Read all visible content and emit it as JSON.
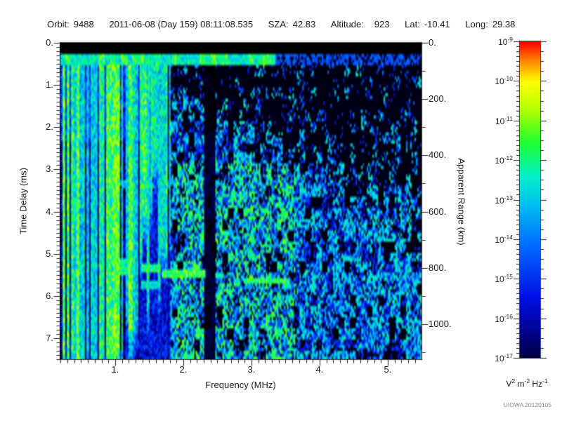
{
  "header": {
    "orbit_label": "Orbit:",
    "orbit_value": "9488",
    "datetime": "2011-06-08 (Day 159) 08:11:08.535",
    "sza_label": "SZA:",
    "sza_value": "42.83",
    "altitude_label": "Altitude:",
    "altitude_value": "923",
    "lat_label": "Lat:",
    "lat_value": "-10.41",
    "long_label": "Long:",
    "long_value": "29.38"
  },
  "chart_data": {
    "type": "heatmap",
    "title": "",
    "xlabel": "Frequency (MHz)",
    "ylabel": "Time Delay (ms)",
    "y2label": "Apparent Range (km)",
    "xlim": [
      0.186,
      5.495
    ],
    "ylim": [
      0,
      7.5
    ],
    "y2lim": [
      0,
      1125
    ],
    "grid": false,
    "xtick_values": [
      1,
      2,
      3,
      4,
      5
    ],
    "xtick_labels": [
      "1.",
      "2.",
      "3.",
      "4.",
      "5."
    ],
    "xtick_minor_step": 0.1,
    "ytick_values": [
      0,
      1,
      2,
      3,
      4,
      5,
      6,
      7
    ],
    "ytick_labels": [
      "0.",
      "1.",
      "2.",
      "3.",
      "4.",
      "5.",
      "6.",
      "7."
    ],
    "ytick_minor_step": 0.1,
    "y2tick_values": [
      0,
      200,
      400,
      600,
      800,
      1000
    ],
    "y2tick_labels": [
      "0.",
      "200.",
      "400.",
      "600.",
      "800.",
      "1000."
    ],
    "y2tick_minor_step": 100,
    "colorbar": {
      "position": "right",
      "scale": "log",
      "min_exp": -17,
      "max_exp": -9,
      "tick_exponents": [
        -9,
        -10,
        -11,
        -12,
        -13,
        -14,
        -15,
        -16,
        -17
      ],
      "unit_parts": [
        {
          "b": "V",
          "e": "2"
        },
        {
          "b": "m",
          "e": "-2"
        },
        {
          "b": "Hz",
          "e": "-1"
        }
      ],
      "value_colormap": [
        [
          0.0,
          "#000000"
        ],
        [
          0.1,
          "#000070"
        ],
        [
          0.24,
          "#0010e8"
        ],
        [
          0.4,
          "#0070ff"
        ],
        [
          0.52,
          "#00c4f0"
        ],
        [
          0.6,
          "#00f0c8"
        ],
        [
          0.7,
          "#20ff30"
        ],
        [
          0.8,
          "#b8ff00"
        ],
        [
          0.88,
          "#ffff00"
        ],
        [
          0.94,
          "#ff8c00"
        ],
        [
          1.0,
          "#ff0000"
        ]
      ]
    },
    "features": {
      "seed": 1337,
      "top_black_ms": 0.28,
      "band": {
        "t0": 0.28,
        "t1": 0.55,
        "f_split": 3.35
      },
      "stripes": {
        "fmax": 1.82,
        "full_depth_fmax": 0.9
      },
      "quiet_band_mhz": [
        2.31,
        2.46
      ],
      "diffuse_onset": {
        "base": 0.35,
        "k": 0.58,
        "p": 1.35,
        "ramp_ms": 1.8
      },
      "faint_line": {
        "f": [
          0.9,
          2.62
        ],
        "t": [
          3.28,
          3.45
        ],
        "amp": 0.42
      },
      "surface_echo_segments": [
        {
          "f": [
            1.07,
            1.24
          ],
          "t": [
            5.12,
            5.52
          ],
          "amp": 0.62
        },
        {
          "f": [
            1.37,
            1.66
          ],
          "t": [
            5.27,
            5.44
          ],
          "amp": 0.66
        },
        {
          "f": [
            1.37,
            1.66
          ],
          "t": [
            5.66,
            5.84
          ],
          "amp": 0.58
        },
        {
          "f": [
            1.68,
            2.32
          ],
          "t": [
            5.38,
            5.6
          ],
          "amp": 0.7
        },
        {
          "f": [
            2.46,
            2.6
          ],
          "t": [
            5.47,
            5.6
          ],
          "amp": 0.58
        },
        {
          "f": [
            2.89,
            3.57
          ],
          "t": [
            5.56,
            5.7
          ],
          "amp": 0.66
        },
        {
          "f": [
            3.46,
            3.58
          ],
          "t": [
            5.7,
            5.86
          ],
          "amp": 0.58
        }
      ]
    }
  },
  "footer": {
    "watermark": "UIOWA 20120105"
  }
}
